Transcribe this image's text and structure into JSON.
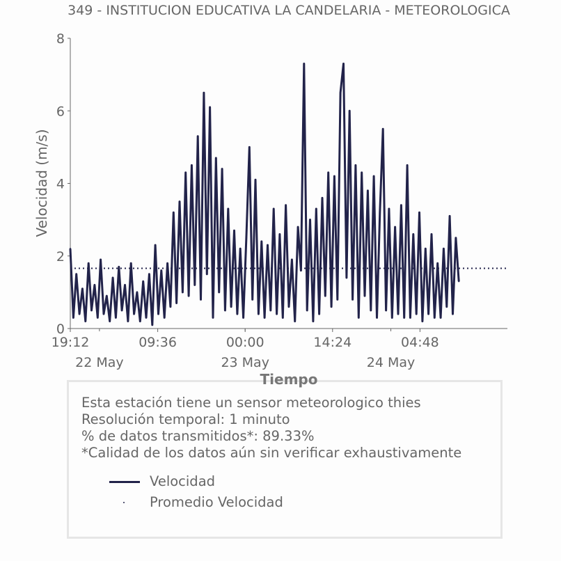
{
  "chart_data": {
    "type": "line",
    "title": "349 - INSTITUCION EDUCATIVA LA CANDELARIA - METEOROLOGICA",
    "xlabel": "Tiempo",
    "ylabel": "Velocidad (m/s)",
    "ylim": [
      0,
      8
    ],
    "yticks": [
      "0",
      "2",
      "4",
      "6",
      "8"
    ],
    "xlim_hours_from_start": [
      0,
      72
    ],
    "start_time": "21 May 19:12",
    "xticks": [
      {
        "hours": 0,
        "label": "19:12"
      },
      {
        "hours": 14.4,
        "label": "09:36"
      },
      {
        "hours": 28.8,
        "label": "00:00"
      },
      {
        "hours": 43.2,
        "label": "14:24"
      },
      {
        "hours": 57.6,
        "label": "04:48"
      }
    ],
    "date_ticks": [
      {
        "hours": 4.8,
        "label": "22 May"
      },
      {
        "hours": 28.8,
        "label": "23 May"
      },
      {
        "hours": 52.8,
        "label": "24 May"
      }
    ],
    "grid": false,
    "series": [
      {
        "name": "Velocidad",
        "color": "#22234a",
        "style": "solid",
        "x_step_hours": 0.5,
        "values": [
          2.2,
          0.3,
          1.5,
          0.4,
          1.1,
          0.2,
          1.8,
          0.5,
          1.2,
          0.3,
          1.9,
          0.4,
          0.9,
          0.2,
          1.4,
          0.3,
          1.7,
          0.5,
          1.2,
          0.2,
          1.8,
          0.4,
          1.0,
          0.2,
          1.3,
          0.3,
          1.5,
          0.1,
          2.3,
          0.4,
          1.6,
          0.3,
          1.8,
          0.6,
          3.2,
          0.7,
          3.5,
          1.0,
          4.3,
          0.9,
          4.5,
          1.2,
          5.3,
          0.8,
          6.5,
          1.5,
          6.1,
          0.3,
          4.7,
          1.0,
          4.4,
          0.5,
          3.3,
          0.6,
          2.7,
          0.4,
          2.2,
          0.3,
          2.5,
          5.0,
          0.8,
          4.1,
          0.4,
          2.4,
          0.3,
          2.3,
          0.5,
          3.3,
          0.4,
          2.6,
          0.3,
          3.4,
          0.6,
          1.9,
          0.2,
          2.8,
          1.6,
          7.3,
          0.5,
          3.0,
          0.2,
          3.3,
          0.4,
          3.6,
          0.9,
          4.3,
          0.6,
          4.2,
          0.8,
          6.5,
          7.3,
          1.4,
          6.0,
          0.8,
          4.5,
          0.3,
          4.3,
          0.9,
          3.8,
          0.5,
          4.2,
          0.3,
          3.2,
          5.5,
          0.5,
          3.3,
          0.3,
          2.8,
          0.4,
          3.4,
          0.3,
          4.5,
          0.3,
          2.6,
          0.4,
          3.2,
          0.2,
          2.2,
          0.4,
          2.6,
          0.3,
          1.8,
          0.3,
          2.2,
          0.6,
          3.1,
          0.4,
          2.5,
          1.3
        ]
      },
      {
        "name": "Promedio Velocidad",
        "color": "#22234a",
        "style": "dotted",
        "value": 1.66
      }
    ],
    "legend_placement": "below"
  },
  "info": {
    "line1": "Esta estación tiene un sensor meteorologico thies",
    "line2": "Resolución temporal: 1 minuto",
    "line3": "% de datos transmitidos*: 89.33%",
    "line4": "*Calidad de los datos aún sin verificar exhaustivamente"
  },
  "legend": {
    "velocidad": "Velocidad",
    "promedio": "Promedio Velocidad"
  }
}
